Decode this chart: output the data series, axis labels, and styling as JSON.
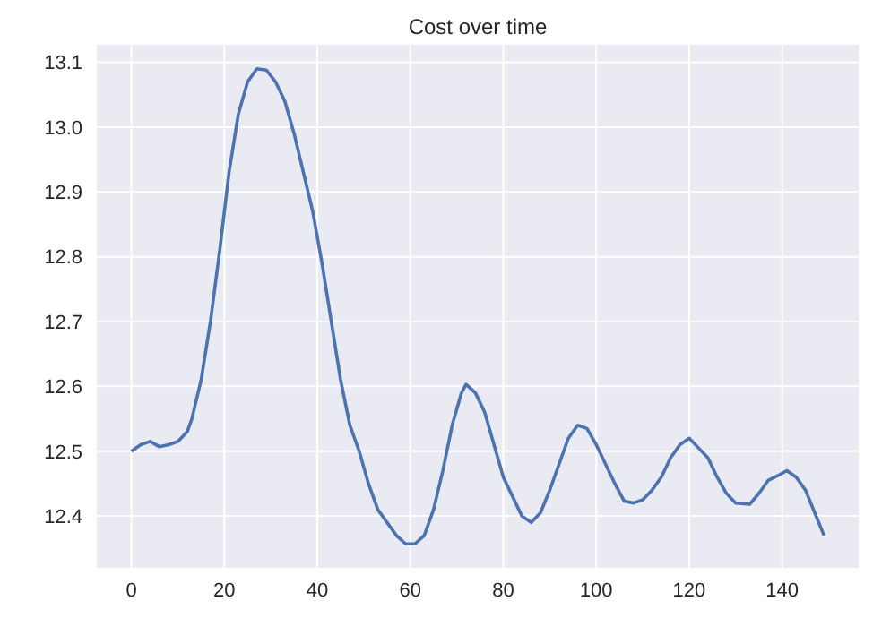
{
  "chart_data": {
    "type": "line",
    "title": "Cost over time",
    "x": [
      0,
      2,
      4,
      6,
      8,
      10,
      12,
      13,
      15,
      17,
      19,
      21,
      23,
      25,
      27,
      29,
      31,
      33,
      35,
      37,
      39,
      41,
      43,
      45,
      47,
      49,
      51,
      53,
      55,
      57,
      59,
      61,
      63,
      65,
      67,
      69,
      71,
      72,
      74,
      76,
      78,
      80,
      82,
      84,
      86,
      88,
      90,
      92,
      94,
      96,
      98,
      100,
      102,
      104,
      106,
      108,
      110,
      112,
      114,
      116,
      118,
      120,
      122,
      124,
      126,
      128,
      130,
      133,
      135,
      137,
      139,
      141,
      143,
      145,
      147,
      149
    ],
    "series": [
      {
        "color": "#4c72b0",
        "values": [
          12.5,
          12.51,
          12.515,
          12.507,
          12.51,
          12.515,
          12.53,
          12.55,
          12.61,
          12.7,
          12.81,
          12.93,
          13.02,
          13.07,
          13.09,
          13.088,
          13.07,
          13.04,
          12.99,
          12.93,
          12.87,
          12.79,
          12.7,
          12.61,
          12.54,
          12.5,
          12.45,
          12.41,
          12.39,
          12.37,
          12.357,
          12.357,
          12.37,
          12.41,
          12.47,
          12.54,
          12.59,
          12.603,
          12.59,
          12.56,
          12.51,
          12.46,
          12.43,
          12.4,
          12.39,
          12.405,
          12.44,
          12.48,
          12.52,
          12.54,
          12.535,
          12.51,
          12.48,
          12.45,
          12.423,
          12.42,
          12.425,
          12.44,
          12.46,
          12.49,
          12.51,
          12.52,
          12.505,
          12.49,
          12.46,
          12.435,
          12.42,
          12.418,
          12.435,
          12.455,
          12.462,
          12.47,
          12.46,
          12.44,
          12.405,
          12.37
        ]
      }
    ],
    "xlim": [
      -7.45,
      156.45
    ],
    "xticks": [
      0,
      20,
      40,
      60,
      80,
      100,
      120,
      140
    ],
    "ylim": [
      12.32,
      13.127
    ],
    "yticks": [
      12.4,
      12.5,
      12.6,
      12.7,
      12.8,
      12.9,
      {
        "value": 13.0,
        "label": "13.0"
      },
      13.1
    ],
    "grid": true,
    "marker": "none",
    "line_style": "solid"
  }
}
